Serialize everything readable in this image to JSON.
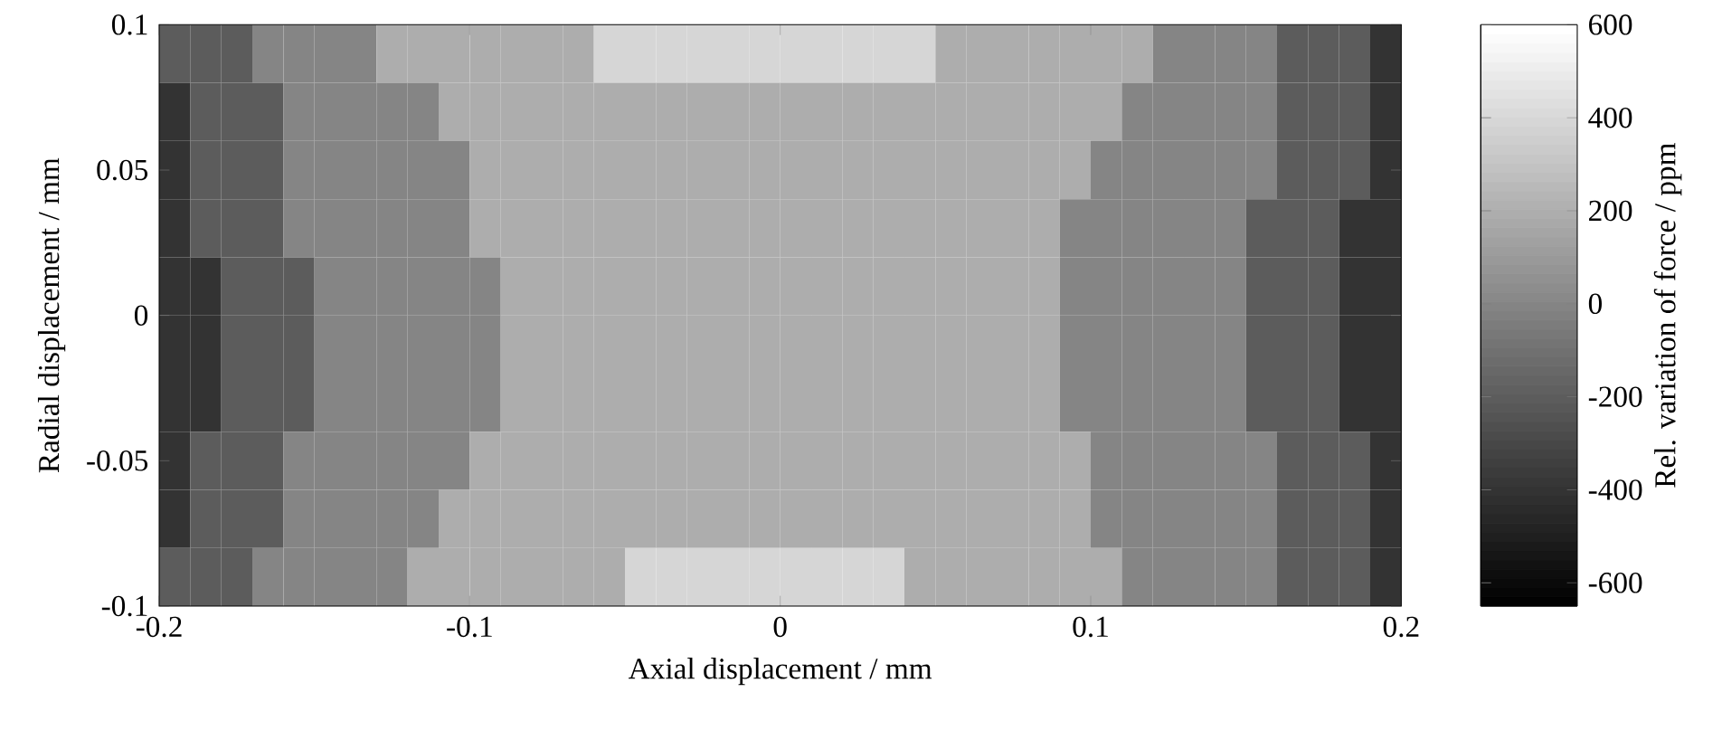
{
  "chart_data": {
    "type": "heatmap",
    "xlabel": "Axial displacement / mm",
    "ylabel": "Radial displacement / mm",
    "clabel": "Rel. variation of force / ppm",
    "x": [
      -0.195,
      -0.185,
      -0.175,
      -0.165,
      -0.155,
      -0.145,
      -0.135,
      -0.125,
      -0.115,
      -0.105,
      -0.095,
      -0.085,
      -0.075,
      -0.065,
      -0.055,
      -0.045,
      -0.035,
      -0.025,
      -0.015,
      -0.005,
      0.005,
      0.015,
      0.025,
      0.035,
      0.045,
      0.055,
      0.065,
      0.075,
      0.085,
      0.095,
      0.105,
      0.115,
      0.125,
      0.135,
      0.145,
      0.155,
      0.165,
      0.175,
      0.185,
      0.195
    ],
    "y": [
      0.09,
      0.07,
      0.05,
      0.03,
      0.01,
      -0.01,
      -0.03,
      -0.05,
      -0.07,
      -0.09
    ],
    "xlim": [
      -0.2,
      0.2
    ],
    "xticks": [
      -0.2,
      -0.1,
      0,
      0.1,
      0.2
    ],
    "ylim": [
      -0.1,
      0.1
    ],
    "yticks": [
      -0.1,
      -0.05,
      0,
      0.05,
      0.1
    ],
    "clim": [
      -650,
      600
    ],
    "cticks": [
      -600,
      -400,
      -200,
      0,
      200,
      400,
      600
    ],
    "cells": [
      [
        -200,
        -200,
        -200,
        0,
        0,
        0,
        0,
        200,
        200,
        200,
        200,
        200,
        200,
        200,
        400,
        400,
        400,
        400,
        400,
        400,
        400,
        400,
        400,
        400,
        400,
        200,
        200,
        200,
        200,
        200,
        200,
        200,
        0,
        0,
        0,
        0,
        -200,
        -200,
        -200,
        -400
      ],
      [
        -400,
        -200,
        -200,
        -200,
        0,
        0,
        0,
        0,
        0,
        200,
        200,
        200,
        200,
        200,
        200,
        200,
        200,
        200,
        200,
        200,
        200,
        200,
        200,
        200,
        200,
        200,
        200,
        200,
        200,
        200,
        200,
        0,
        0,
        0,
        0,
        0,
        -200,
        -200,
        -200,
        -400
      ],
      [
        -400,
        -200,
        -200,
        -200,
        0,
        0,
        0,
        0,
        0,
        0,
        200,
        200,
        200,
        200,
        200,
        200,
        200,
        200,
        200,
        200,
        200,
        200,
        200,
        200,
        200,
        200,
        200,
        200,
        200,
        200,
        0,
        0,
        0,
        0,
        0,
        0,
        -200,
        -200,
        -200,
        -400
      ],
      [
        -400,
        -200,
        -200,
        -200,
        0,
        0,
        0,
        0,
        0,
        0,
        200,
        200,
        200,
        200,
        200,
        200,
        200,
        200,
        200,
        200,
        200,
        200,
        200,
        200,
        200,
        200,
        200,
        200,
        200,
        0,
        0,
        0,
        0,
        0,
        0,
        -200,
        -200,
        -200,
        -400,
        -400
      ],
      [
        -400,
        -400,
        -200,
        -200,
        -200,
        0,
        0,
        0,
        0,
        0,
        0,
        200,
        200,
        200,
        200,
        200,
        200,
        200,
        200,
        200,
        200,
        200,
        200,
        200,
        200,
        200,
        200,
        200,
        200,
        0,
        0,
        0,
        0,
        0,
        0,
        -200,
        -200,
        -200,
        -400,
        -400
      ],
      [
        -400,
        -400,
        -200,
        -200,
        -200,
        0,
        0,
        0,
        0,
        0,
        0,
        200,
        200,
        200,
        200,
        200,
        200,
        200,
        200,
        200,
        200,
        200,
        200,
        200,
        200,
        200,
        200,
        200,
        200,
        0,
        0,
        0,
        0,
        0,
        0,
        -200,
        -200,
        -200,
        -400,
        -400
      ],
      [
        -400,
        -400,
        -200,
        -200,
        -200,
        0,
        0,
        0,
        0,
        0,
        0,
        200,
        200,
        200,
        200,
        200,
        200,
        200,
        200,
        200,
        200,
        200,
        200,
        200,
        200,
        200,
        200,
        200,
        200,
        0,
        0,
        0,
        0,
        0,
        0,
        -200,
        -200,
        -200,
        -400,
        -400
      ],
      [
        -400,
        -200,
        -200,
        -200,
        0,
        0,
        0,
        0,
        0,
        0,
        200,
        200,
        200,
        200,
        200,
        200,
        200,
        200,
        200,
        200,
        200,
        200,
        200,
        200,
        200,
        200,
        200,
        200,
        200,
        200,
        0,
        0,
        0,
        0,
        0,
        0,
        -200,
        -200,
        -200,
        -400
      ],
      [
        -400,
        -200,
        -200,
        -200,
        0,
        0,
        0,
        0,
        0,
        200,
        200,
        200,
        200,
        200,
        200,
        200,
        200,
        200,
        200,
        200,
        200,
        200,
        200,
        200,
        200,
        200,
        200,
        200,
        200,
        200,
        0,
        0,
        0,
        0,
        0,
        0,
        -200,
        -200,
        -200,
        -400
      ],
      [
        -200,
        -200,
        -200,
        0,
        0,
        0,
        0,
        0,
        200,
        200,
        200,
        200,
        200,
        200,
        200,
        400,
        400,
        400,
        400,
        400,
        400,
        400,
        400,
        400,
        200,
        200,
        200,
        200,
        200,
        200,
        200,
        0,
        0,
        0,
        0,
        0,
        -200,
        -200,
        -200,
        -400
      ]
    ]
  }
}
